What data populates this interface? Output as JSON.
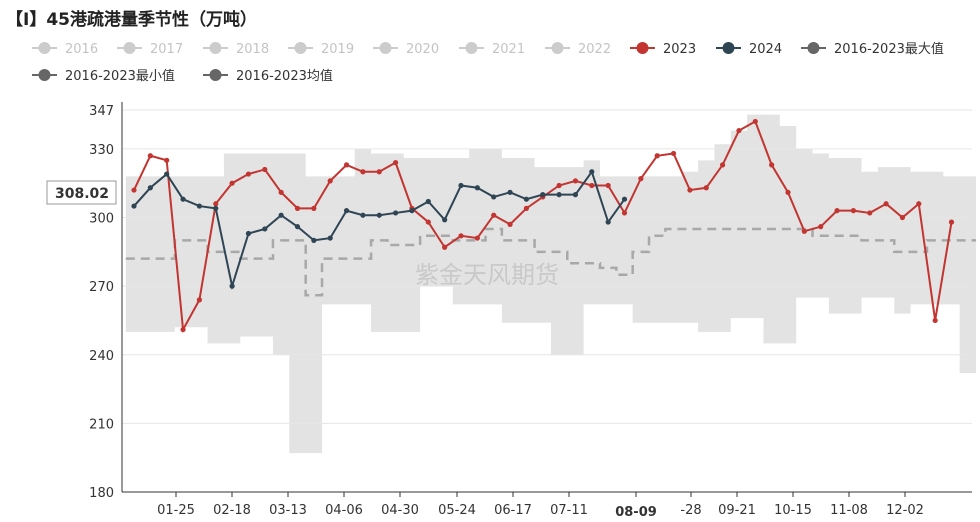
{
  "title": "【I】45港疏港量季节性（万吨）",
  "watermark": "紫金天风期货",
  "cursor": {
    "y_label": "308.02",
    "x_label": "08-09"
  },
  "chart_data": {
    "type": "line",
    "title": "【I】45港疏港量季节性（万吨）",
    "ylim": [
      180,
      347
    ],
    "yticks": [
      180,
      210,
      240,
      270,
      300,
      330,
      347
    ],
    "xticks": [
      "01-25",
      "02-18",
      "03-13",
      "04-06",
      "04-30",
      "05-24",
      "06-17",
      "07-11",
      "08-09",
      "-28",
      "09-21",
      "10-15",
      "11-08",
      "12-02"
    ],
    "grid": true,
    "legend_position": "top-left",
    "legend": [
      {
        "name": "2016",
        "color": "#cccccc",
        "active": false
      },
      {
        "name": "2017",
        "color": "#cccccc",
        "active": false
      },
      {
        "name": "2018",
        "color": "#cccccc",
        "active": false
      },
      {
        "name": "2019",
        "color": "#cccccc",
        "active": false
      },
      {
        "name": "2020",
        "color": "#cccccc",
        "active": false
      },
      {
        "name": "2021",
        "color": "#cccccc",
        "active": false
      },
      {
        "name": "2022",
        "color": "#cccccc",
        "active": false
      },
      {
        "name": "2023",
        "color": "#c23531",
        "active": true
      },
      {
        "name": "2024",
        "color": "#2f4554",
        "active": true
      },
      {
        "name": "2016-2023最大值",
        "color": "#666666",
        "active": true
      },
      {
        "name": "2016-2023最小值",
        "color": "#666666",
        "active": true
      },
      {
        "name": "2016-2023均值",
        "color": "#666666",
        "active": true
      }
    ],
    "week_count": 52,
    "series": [
      {
        "name": "2023",
        "color": "#c23531",
        "values": [
          312,
          327,
          325,
          251,
          264,
          306,
          315,
          319,
          321,
          311,
          304,
          304,
          316,
          323,
          320,
          320,
          324,
          304,
          298,
          287,
          292,
          291,
          301,
          297,
          304,
          309,
          314,
          316,
          314,
          314,
          302,
          317,
          327,
          328,
          312,
          313,
          323,
          338,
          342,
          323,
          311,
          294,
          296,
          303,
          303,
          302,
          306,
          300,
          306,
          255,
          298
        ]
      },
      {
        "name": "2024",
        "color": "#2f4554",
        "values": [
          305,
          313,
          319,
          308,
          305,
          304,
          270,
          293,
          295,
          301,
          296,
          290,
          291,
          303,
          301,
          301,
          302,
          303,
          307,
          299,
          314,
          313,
          309,
          311,
          308,
          310,
          310,
          310,
          320,
          298,
          308
        ]
      },
      {
        "name": "2016-2023最大值",
        "values": [
          318,
          318,
          318,
          318,
          318,
          318,
          328,
          328,
          328,
          328,
          328,
          318,
          318,
          318,
          330,
          328,
          328,
          326,
          326,
          326,
          326,
          330,
          330,
          326,
          326,
          322,
          322,
          322,
          325,
          318,
          318,
          318,
          318,
          318,
          320,
          325,
          332,
          338,
          345,
          345,
          340,
          330,
          328,
          326,
          326,
          320,
          322,
          322,
          320,
          320,
          318,
          318
        ]
      },
      {
        "name": "2016-2023最小值",
        "values": [
          250,
          250,
          250,
          252,
          252,
          245,
          245,
          248,
          248,
          240,
          197,
          197,
          262,
          262,
          262,
          250,
          250,
          250,
          270,
          270,
          262,
          262,
          262,
          254,
          254,
          254,
          240,
          240,
          262,
          262,
          262,
          254,
          254,
          254,
          254,
          250,
          250,
          256,
          256,
          245,
          245,
          265,
          265,
          258,
          258,
          265,
          265,
          258,
          262,
          262,
          262,
          232
        ]
      },
      {
        "name": "2016-2023均值",
        "values": [
          282,
          282,
          282,
          290,
          290,
          285,
          285,
          282,
          282,
          290,
          290,
          266,
          282,
          282,
          282,
          290,
          288,
          288,
          292,
          292,
          290,
          290,
          295,
          290,
          290,
          285,
          285,
          280,
          280,
          278,
          275,
          285,
          292,
          295,
          295,
          295,
          295,
          295,
          295,
          295,
          295,
          295,
          292,
          292,
          292,
          290,
          290,
          285,
          285,
          290,
          290,
          290
        ]
      }
    ]
  }
}
